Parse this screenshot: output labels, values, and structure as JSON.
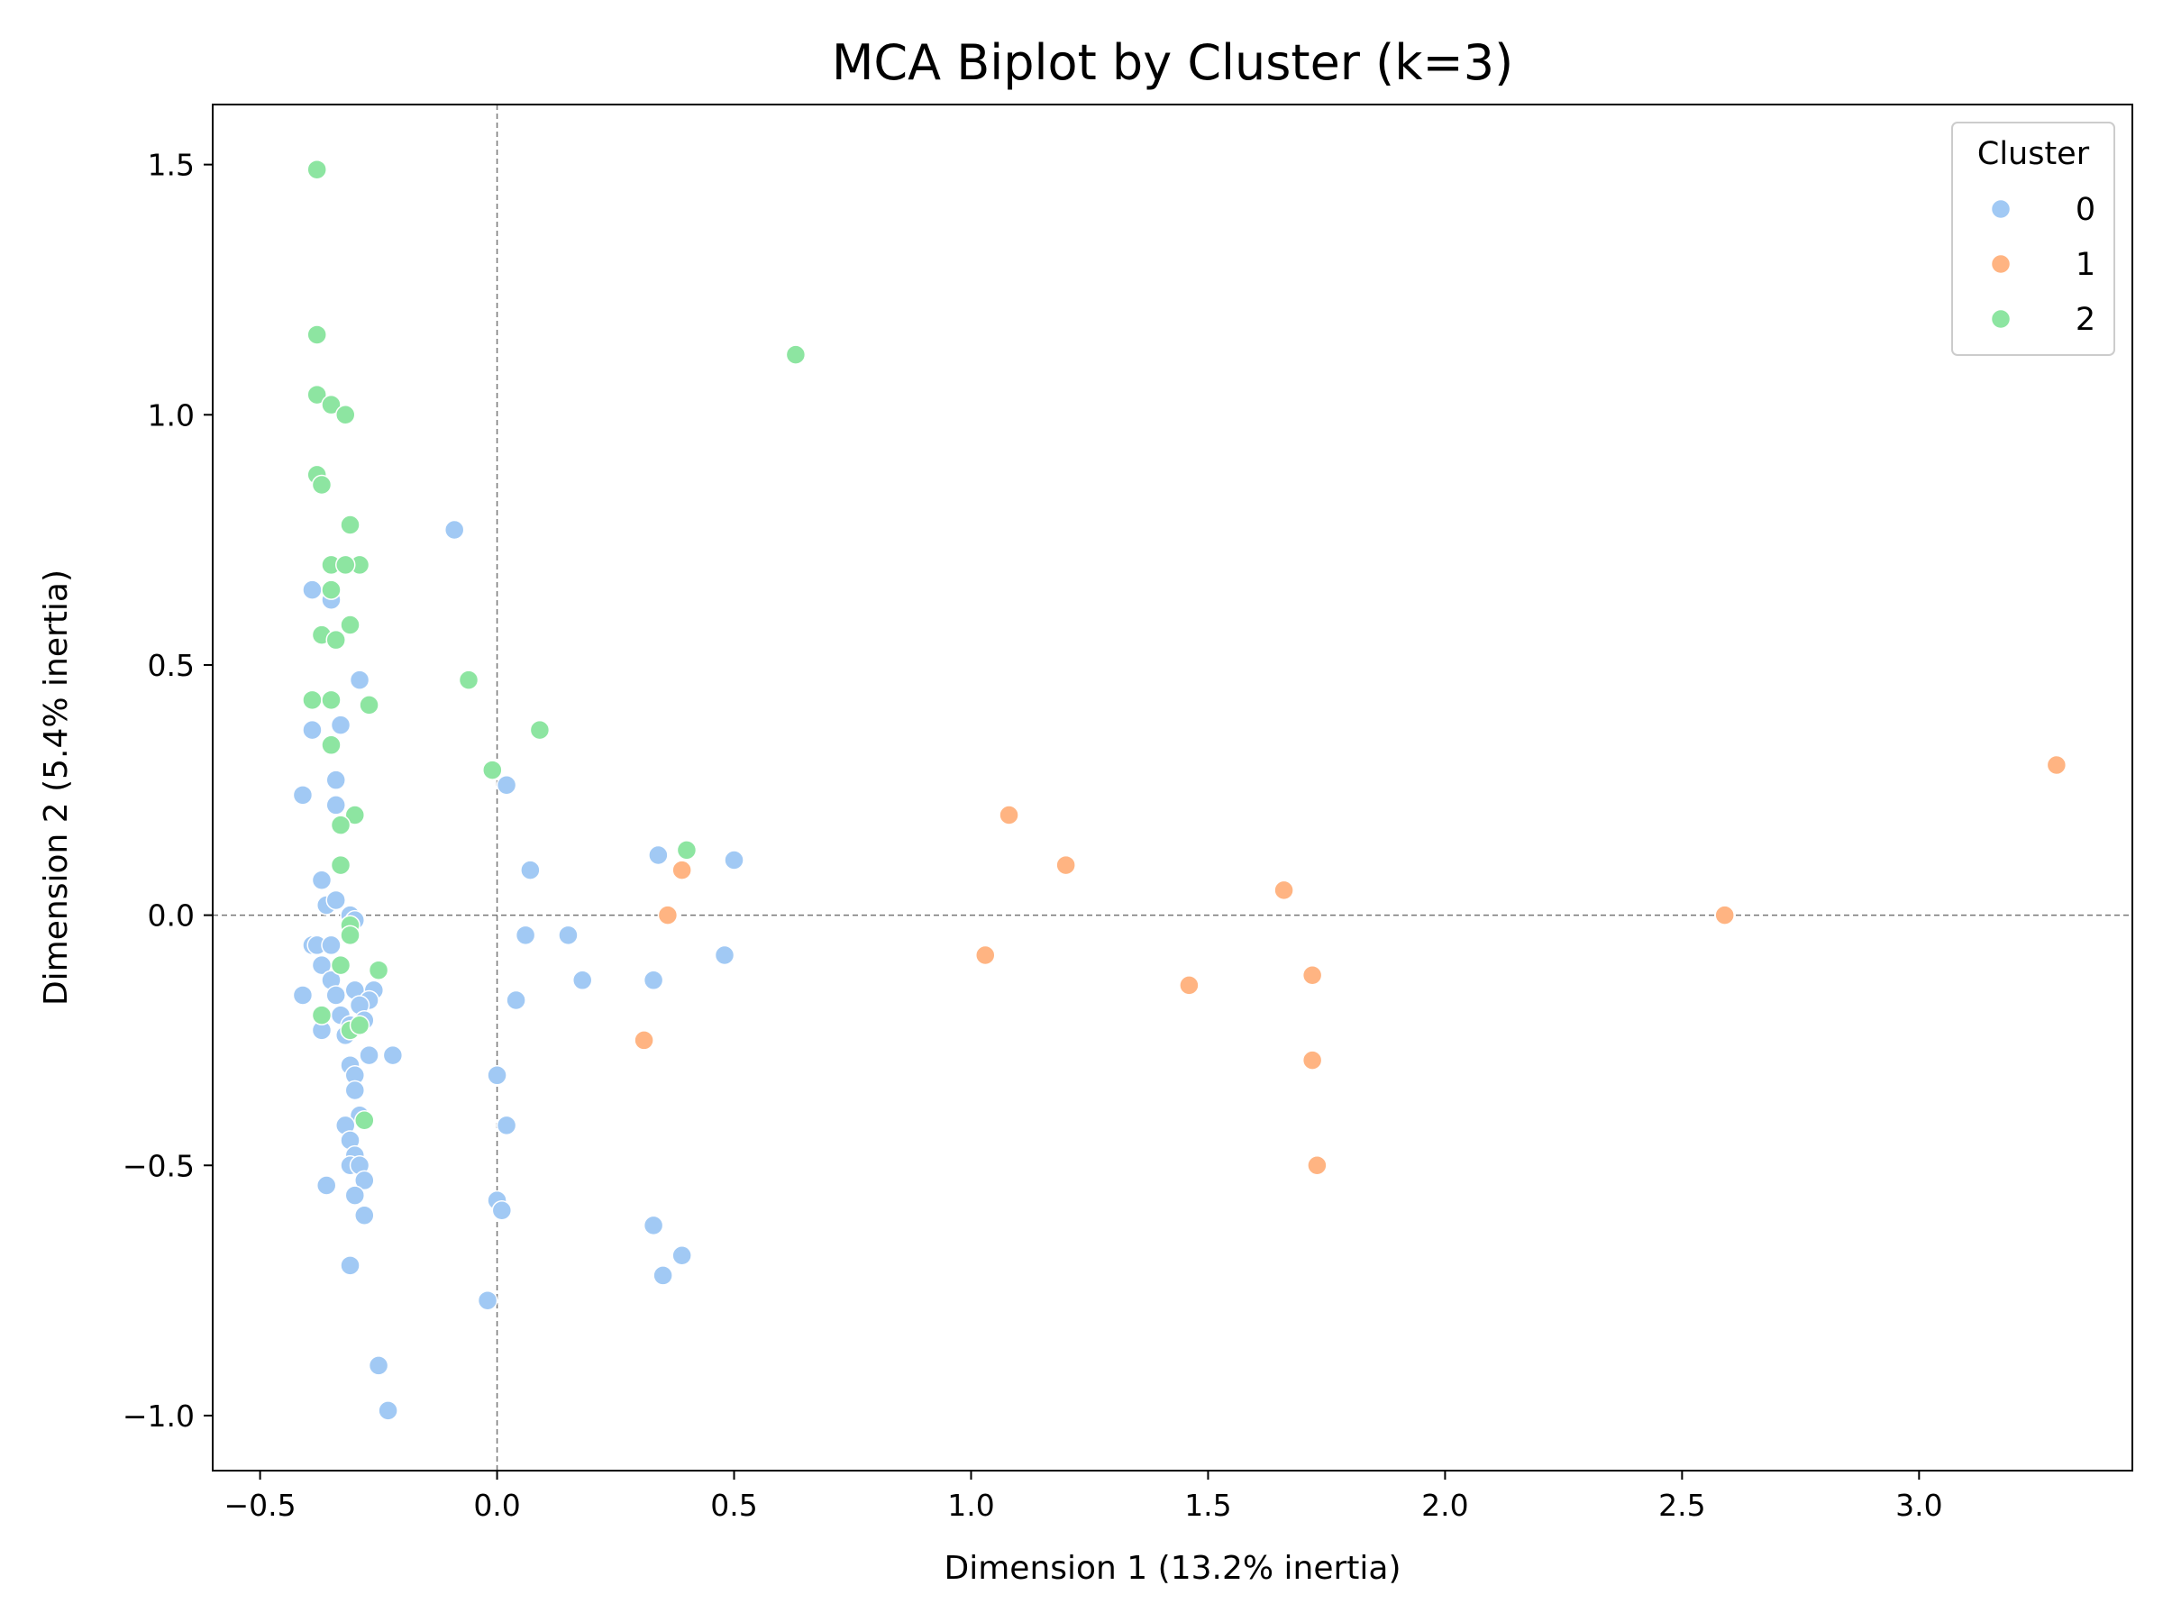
{
  "chart_data": {
    "type": "scatter",
    "title": "MCA Biplot by Cluster (k=3)",
    "xlabel": "Dimension 1 (13.2% inertia)",
    "ylabel": "Dimension 2 (5.4% inertia)",
    "xlim": [
      -0.6,
      3.45
    ],
    "ylim": [
      -1.11,
      1.62
    ],
    "xticks": [
      -0.5,
      0.0,
      0.5,
      1.0,
      1.5,
      2.0,
      2.5,
      3.0
    ],
    "yticks": [
      -1.0,
      -0.5,
      0.0,
      0.5,
      1.0,
      1.5
    ],
    "xtick_labels": [
      "−0.5",
      "0.0",
      "0.5",
      "1.0",
      "1.5",
      "2.0",
      "2.5",
      "3.0"
    ],
    "ytick_labels": [
      "−1.0",
      "−0.5",
      "0.0",
      "0.5",
      "1.0",
      "1.5"
    ],
    "reference_lines": {
      "x": 0,
      "y": 0,
      "style": "dashed"
    },
    "grid": false,
    "legend": {
      "title": "Cluster",
      "placement": "top-right"
    },
    "series": [
      {
        "name": "0",
        "color": "#a1c9f4",
        "points": [
          [
            -0.09,
            0.77
          ],
          [
            -0.39,
            0.65
          ],
          [
            -0.35,
            0.63
          ],
          [
            -0.29,
            0.47
          ],
          [
            -0.39,
            0.37
          ],
          [
            -0.33,
            0.38
          ],
          [
            -0.34,
            0.27
          ],
          [
            -0.41,
            0.24
          ],
          [
            -0.34,
            0.22
          ],
          [
            0.02,
            0.26
          ],
          [
            0.07,
            0.09
          ],
          [
            0.34,
            0.12
          ],
          [
            0.5,
            0.11
          ],
          [
            -0.37,
            0.07
          ],
          [
            -0.36,
            0.02
          ],
          [
            -0.34,
            0.03
          ],
          [
            -0.31,
            0.0
          ],
          [
            -0.3,
            -0.01
          ],
          [
            -0.39,
            -0.06
          ],
          [
            -0.38,
            -0.06
          ],
          [
            -0.35,
            -0.06
          ],
          [
            -0.37,
            -0.1
          ],
          [
            0.06,
            -0.04
          ],
          [
            0.15,
            -0.04
          ],
          [
            0.48,
            -0.08
          ],
          [
            -0.41,
            -0.16
          ],
          [
            -0.35,
            -0.13
          ],
          [
            -0.34,
            -0.16
          ],
          [
            -0.3,
            -0.15
          ],
          [
            -0.26,
            -0.15
          ],
          [
            -0.27,
            -0.17
          ],
          [
            -0.29,
            -0.18
          ],
          [
            -0.33,
            -0.2
          ],
          [
            -0.28,
            -0.21
          ],
          [
            -0.31,
            -0.22
          ],
          [
            -0.37,
            -0.23
          ],
          [
            -0.32,
            -0.24
          ],
          [
            0.18,
            -0.13
          ],
          [
            0.33,
            -0.13
          ],
          [
            0.04,
            -0.17
          ],
          [
            -0.22,
            -0.28
          ],
          [
            -0.27,
            -0.28
          ],
          [
            -0.31,
            -0.3
          ],
          [
            -0.3,
            -0.32
          ],
          [
            -0.3,
            -0.35
          ],
          [
            0.0,
            -0.32
          ],
          [
            0.02,
            -0.42
          ],
          [
            -0.29,
            -0.4
          ],
          [
            -0.32,
            -0.42
          ],
          [
            -0.31,
            -0.45
          ],
          [
            -0.3,
            -0.48
          ],
          [
            -0.31,
            -0.5
          ],
          [
            -0.29,
            -0.5
          ],
          [
            -0.28,
            -0.53
          ],
          [
            -0.36,
            -0.54
          ],
          [
            -0.3,
            -0.56
          ],
          [
            -0.28,
            -0.6
          ],
          [
            0.0,
            -0.57
          ],
          [
            0.01,
            -0.59
          ],
          [
            0.33,
            -0.62
          ],
          [
            0.39,
            -0.68
          ],
          [
            0.35,
            -0.72
          ],
          [
            -0.31,
            -0.7
          ],
          [
            -0.02,
            -0.77
          ],
          [
            -0.25,
            -0.9
          ],
          [
            -0.23,
            -0.99
          ]
        ]
      },
      {
        "name": "1",
        "color": "#ffb482",
        "points": [
          [
            3.29,
            0.3
          ],
          [
            1.08,
            0.2
          ],
          [
            1.2,
            0.1
          ],
          [
            0.39,
            0.09
          ],
          [
            1.66,
            0.05
          ],
          [
            0.36,
            0.0
          ],
          [
            2.59,
            0.0
          ],
          [
            1.03,
            -0.08
          ],
          [
            1.72,
            -0.12
          ],
          [
            1.46,
            -0.14
          ],
          [
            0.31,
            -0.25
          ],
          [
            1.72,
            -0.29
          ],
          [
            1.73,
            -0.5
          ]
        ]
      },
      {
        "name": "2",
        "color": "#8de5a1",
        "points": [
          [
            -0.38,
            1.49
          ],
          [
            -0.38,
            1.16
          ],
          [
            -0.38,
            1.04
          ],
          [
            -0.35,
            1.02
          ],
          [
            -0.32,
            1.0
          ],
          [
            0.63,
            1.12
          ],
          [
            -0.38,
            0.88
          ],
          [
            -0.37,
            0.86
          ],
          [
            -0.31,
            0.78
          ],
          [
            -0.35,
            0.7
          ],
          [
            -0.29,
            0.7
          ],
          [
            -0.32,
            0.7
          ],
          [
            -0.35,
            0.65
          ],
          [
            -0.31,
            0.58
          ],
          [
            -0.37,
            0.56
          ],
          [
            -0.34,
            0.55
          ],
          [
            -0.06,
            0.47
          ],
          [
            -0.39,
            0.43
          ],
          [
            -0.35,
            0.43
          ],
          [
            -0.27,
            0.42
          ],
          [
            0.09,
            0.37
          ],
          [
            -0.35,
            0.34
          ],
          [
            -0.01,
            0.29
          ],
          [
            -0.3,
            0.2
          ],
          [
            -0.33,
            0.18
          ],
          [
            0.4,
            0.13
          ],
          [
            -0.33,
            0.1
          ],
          [
            -0.31,
            -0.02
          ],
          [
            -0.31,
            -0.04
          ],
          [
            -0.33,
            -0.1
          ],
          [
            -0.25,
            -0.11
          ],
          [
            -0.37,
            -0.2
          ],
          [
            -0.31,
            -0.23
          ],
          [
            -0.29,
            -0.22
          ],
          [
            -0.28,
            -0.41
          ]
        ]
      }
    ]
  }
}
